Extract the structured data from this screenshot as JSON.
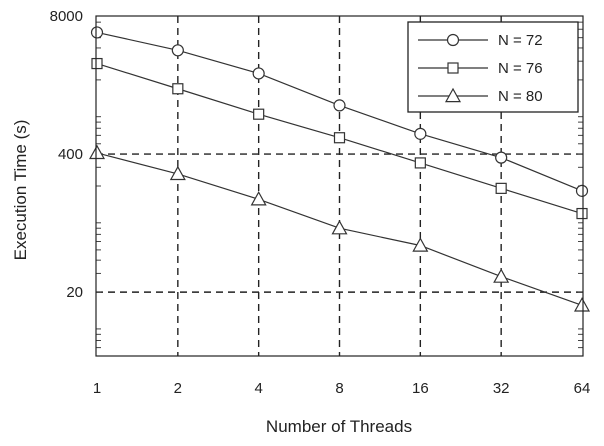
{
  "chart_data": {
    "type": "line",
    "xlabel": "Number of Threads",
    "ylabel": "Execution Time (s)",
    "x": [
      1,
      2,
      4,
      8,
      16,
      32,
      64
    ],
    "x_tick_labels": [
      "1",
      "2",
      "4",
      "8",
      "16",
      "32",
      "64"
    ],
    "x_scale": "log2",
    "y_scale": "log",
    "ylim": [
      5,
      8000
    ],
    "y_tick_values": [
      20,
      400,
      8000
    ],
    "y_tick_labels": [
      "20",
      "400",
      "8000"
    ],
    "grid": "dashed major gridlines at x ticks and at y = 20 and 400",
    "legend_position": "top-right",
    "series": [
      {
        "name": "N = 72",
        "marker": "circle",
        "values": [
          5600,
          3800,
          2300,
          1150,
          620,
          370,
          180
        ]
      },
      {
        "name": "N = 76",
        "marker": "square",
        "values": [
          2850,
          1650,
          950,
          570,
          330,
          190,
          110
        ]
      },
      {
        "name": "N = 80",
        "marker": "triangle",
        "values": [
          410,
          260,
          150,
          80,
          55,
          28,
          15
        ]
      }
    ]
  }
}
